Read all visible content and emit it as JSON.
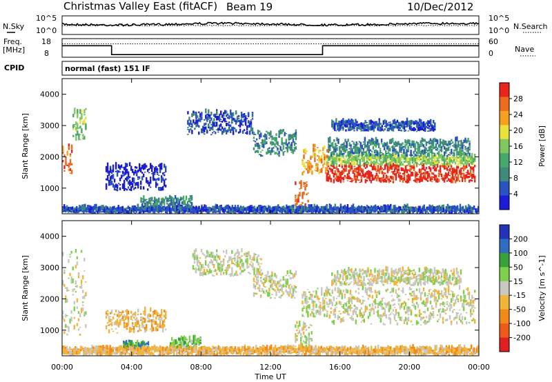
{
  "header": {
    "station": "Christmas Valley East (fitACF)",
    "beam": "Beam 19",
    "date": "10/Dec/2012"
  },
  "noise_panel": {
    "left_label": "N.Sky",
    "right_label": "N.Search",
    "left_ticks": [
      "10^5",
      "10^0"
    ],
    "right_ticks": [
      "10^5",
      "10^0"
    ]
  },
  "freq_panel": {
    "left_label_line1": "Freq.",
    "left_label_line2": "[MHz]",
    "right_label": "Nave",
    "left_ticks": [
      "18",
      "8"
    ],
    "right_ticks": [
      "60",
      "0"
    ],
    "freq_steps": [
      {
        "t0": 0,
        "t1": 2.85,
        "mhz": 14.2
      },
      {
        "t0": 2.85,
        "t1": 15.0,
        "mhz": 9.4
      },
      {
        "t0": 15.0,
        "t1": 24,
        "mhz": 14.2
      }
    ],
    "nave_level": 43
  },
  "cpid": {
    "label": "CPID",
    "value": "normal (fast) 151 IF"
  },
  "chart_data": [
    {
      "type": "heatmap",
      "title": "Power",
      "ylabel": "Slant Range [km]",
      "xlabel": "Time UT",
      "x_ticks": [
        "00:00",
        "04:00",
        "08:00",
        "12:00",
        "16:00",
        "20:00",
        "00:00"
      ],
      "y_ticks": [
        "1000",
        "2000",
        "3000",
        "4000"
      ],
      "ylim": [
        180,
        4500
      ],
      "colorbar": {
        "label": "Power [dB]",
        "ticks": [
          "4",
          "8",
          "12",
          "16",
          "20",
          "24",
          "28"
        ],
        "colors": [
          "#1c1cd8",
          "#2a53c2",
          "#3f8a7a",
          "#48a86a",
          "#7fc860",
          "#e9e23c",
          "#f5a020",
          "#ee6a1e",
          "#e8241c"
        ]
      },
      "bands": [
        {
          "t": [
            15.2,
            23.8
          ],
          "r": [
            1150,
            1700
          ],
          "level": 8
        },
        {
          "t": [
            15.2,
            23.8
          ],
          "r": [
            1700,
            2000
          ],
          "level": 4
        },
        {
          "t": [
            15.3,
            23.5
          ],
          "r": [
            2000,
            2500
          ],
          "level": 2
        },
        {
          "t": [
            15.5,
            21.5
          ],
          "r": [
            2800,
            3100
          ],
          "level": 1
        },
        {
          "t": [
            13.8,
            15.3
          ],
          "r": [
            1400,
            2300
          ],
          "level": 6
        },
        {
          "t": [
            13.4,
            14.2
          ],
          "r": [
            250,
            1200
          ],
          "level": 7
        },
        {
          "t": [
            0.0,
            0.6
          ],
          "r": [
            1400,
            2400
          ],
          "level": 7
        },
        {
          "t": [
            0.6,
            1.4
          ],
          "r": [
            2500,
            3500
          ],
          "level": 4
        },
        {
          "t": [
            7.2,
            11.0
          ],
          "r": [
            2700,
            3400
          ],
          "level": 1
        },
        {
          "t": [
            11.0,
            13.5
          ],
          "r": [
            2000,
            2800
          ],
          "level": 2
        },
        {
          "t": [
            2.5,
            6.0
          ],
          "r": [
            900,
            1700
          ],
          "level": 0
        },
        {
          "t": [
            4.5,
            7.5
          ],
          "r": [
            250,
            650
          ],
          "level": 2
        },
        {
          "t": [
            0,
            24
          ],
          "r": [
            180,
            350
          ],
          "level": 1
        }
      ]
    },
    {
      "type": "heatmap",
      "title": "Velocity",
      "ylabel": "Slant Range [km]",
      "xlabel": "Time UT",
      "x_ticks": [
        "00:00",
        "04:00",
        "08:00",
        "12:00",
        "16:00",
        "20:00",
        "00:00"
      ],
      "y_ticks": [
        "1000",
        "2000",
        "3000",
        "4000"
      ],
      "ylim": [
        180,
        4500
      ],
      "colorbar": {
        "label": "Velocity [m s^-1]",
        "ticks": [
          "200",
          "100",
          "50",
          "15",
          "-15",
          "-50",
          "-100",
          "-200"
        ],
        "colors": [
          "#2233b8",
          "#2f6dc0",
          "#3aa03a",
          "#7fd04a",
          "#c8c8c0",
          "#f2b43a",
          "#f28a1a",
          "#ee5a1a",
          "#e02020"
        ]
      },
      "bands": [
        {
          "t": [
            15.2,
            23.8
          ],
          "r": [
            1150,
            2300
          ],
          "level": 4
        },
        {
          "t": [
            15.5,
            23.0
          ],
          "r": [
            2400,
            2900
          ],
          "level": 4
        },
        {
          "t": [
            13.8,
            15.3
          ],
          "r": [
            1400,
            2300
          ],
          "level": 4
        },
        {
          "t": [
            13.4,
            14.4
          ],
          "r": [
            300,
            1200
          ],
          "level": 4
        },
        {
          "t": [
            7.5,
            11.5
          ],
          "r": [
            2700,
            3500
          ],
          "level": 4
        },
        {
          "t": [
            11.0,
            13.5
          ],
          "r": [
            2000,
            2800
          ],
          "level": 4
        },
        {
          "t": [
            0.0,
            1.4
          ],
          "r": [
            800,
            3500
          ],
          "level": 4
        },
        {
          "t": [
            6.2,
            8.0
          ],
          "r": [
            350,
            700
          ],
          "level": 3
        },
        {
          "t": [
            3.5,
            5.0
          ],
          "r": [
            350,
            550
          ],
          "level": 2
        },
        {
          "t": [
            0,
            24
          ],
          "r": [
            180,
            400
          ],
          "level": 5
        },
        {
          "t": [
            2.5,
            6.0
          ],
          "r": [
            900,
            1600
          ],
          "level": 5
        }
      ]
    }
  ]
}
